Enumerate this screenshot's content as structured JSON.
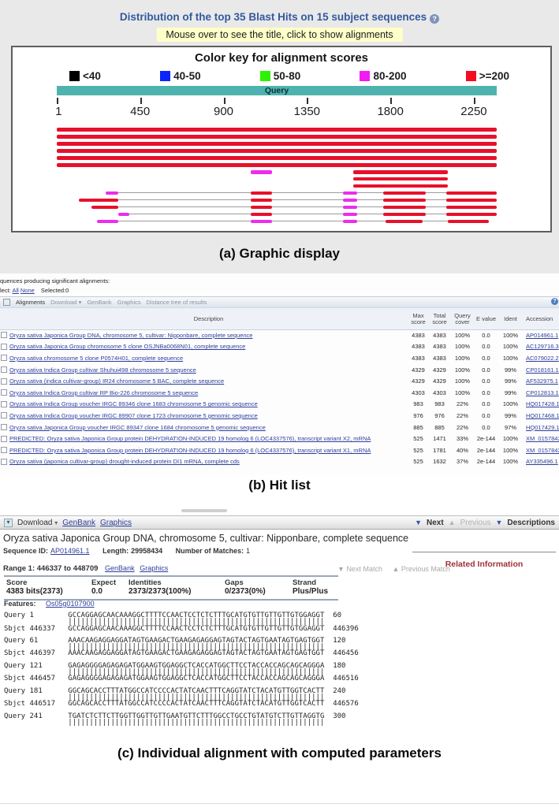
{
  "colors": {
    "red": "#e8102a",
    "magenta": "#ee2bee",
    "teal": "#4eb3af",
    "link_blue": "#2e3f9c",
    "title_blue": "#33599e",
    "maroon": "#9e3039"
  },
  "graphic": {
    "title": "Distribution of the top 35 Blast Hits on 15 subject sequences",
    "help_icon": "?",
    "hint": "Mouse over to see the title, click to show alignments",
    "color_key_title": "Color key for alignment scores",
    "legend": [
      {
        "label": "<40",
        "color": "#000000"
      },
      {
        "label": "40-50",
        "color": "#0b24fb"
      },
      {
        "label": "50-80",
        "color": "#2df200"
      },
      {
        "label": "80-200",
        "color": "#f31bf3"
      },
      {
        "label": ">=200",
        "color": "#f30d1e"
      }
    ],
    "query_label": "Query",
    "query_length": 2373,
    "ruler_ticks": [
      1,
      450,
      900,
      1350,
      1800,
      2250
    ],
    "rows": [
      {
        "segments": [
          {
            "start": 1,
            "end": 2373,
            "color": "red"
          }
        ]
      },
      {
        "segments": [
          {
            "start": 1,
            "end": 2373,
            "color": "red"
          }
        ]
      },
      {
        "segments": [
          {
            "start": 1,
            "end": 2373,
            "color": "red"
          }
        ]
      },
      {
        "segments": [
          {
            "start": 1,
            "end": 2373,
            "color": "red"
          }
        ]
      },
      {
        "segments": [
          {
            "start": 1,
            "end": 2373,
            "color": "red"
          }
        ]
      },
      {
        "segments": [
          {
            "start": 1,
            "end": 2373,
            "color": "red"
          }
        ]
      },
      {
        "segments": [
          {
            "start": 1045,
            "end": 1160,
            "color": "magenta"
          },
          {
            "start": 1600,
            "end": 2110,
            "color": "red"
          }
        ]
      },
      {
        "segments": [
          {
            "start": 1600,
            "end": 2110,
            "color": "red"
          }
        ]
      },
      {
        "segments": [
          {
            "start": 1600,
            "end": 2110,
            "color": "red"
          }
        ]
      },
      {
        "line": [
          330,
          2373
        ],
        "segments": [
          {
            "start": 265,
            "end": 330,
            "color": "magenta"
          },
          {
            "start": 1045,
            "end": 1160,
            "color": "red"
          },
          {
            "start": 1545,
            "end": 1620,
            "color": "magenta"
          },
          {
            "start": 1760,
            "end": 1990,
            "color": "red"
          },
          {
            "start": 2100,
            "end": 2373,
            "color": "red"
          }
        ]
      },
      {
        "line": [
          333,
          2373
        ],
        "segments": [
          {
            "start": 120,
            "end": 333,
            "color": "red"
          },
          {
            "start": 1045,
            "end": 1160,
            "color": "red"
          },
          {
            "start": 1545,
            "end": 1620,
            "color": "magenta"
          },
          {
            "start": 1760,
            "end": 1990,
            "color": "red"
          },
          {
            "start": 2100,
            "end": 2373,
            "color": "red"
          }
        ]
      },
      {
        "line": [
          333,
          2373
        ],
        "segments": [
          {
            "start": 185,
            "end": 333,
            "color": "red"
          },
          {
            "start": 1045,
            "end": 1160,
            "color": "red"
          },
          {
            "start": 1545,
            "end": 1620,
            "color": "magenta"
          },
          {
            "start": 1760,
            "end": 1990,
            "color": "red"
          },
          {
            "start": 2100,
            "end": 2373,
            "color": "red"
          }
        ]
      },
      {
        "line": [
          390,
          2373
        ],
        "segments": [
          {
            "start": 333,
            "end": 390,
            "color": "magenta"
          },
          {
            "start": 1045,
            "end": 1160,
            "color": "red"
          },
          {
            "start": 1545,
            "end": 1620,
            "color": "magenta"
          },
          {
            "start": 1760,
            "end": 1990,
            "color": "red"
          },
          {
            "start": 2100,
            "end": 2373,
            "color": "red"
          }
        ]
      },
      {
        "line": [
          333,
          2330
        ],
        "segments": [
          {
            "start": 215,
            "end": 333,
            "color": "magenta"
          },
          {
            "start": 1045,
            "end": 1160,
            "color": "magenta"
          },
          {
            "start": 1545,
            "end": 1620,
            "color": "magenta"
          },
          {
            "start": 1775,
            "end": 1975,
            "color": "red"
          },
          {
            "start": 2110,
            "end": 2330,
            "color": "red"
          }
        ]
      }
    ],
    "caption": "(a) Graphic display"
  },
  "hitlist": {
    "producing_line": "quences producing significant alignments:",
    "select_prefix": "lect:",
    "select_all": "All",
    "select_none": "None",
    "selected_count": "Selected:0",
    "toolbar": {
      "alignments": "Alignments",
      "download": "Download",
      "download_chevron": "▾",
      "genbank": "GenBank",
      "graphics": "Graphics",
      "distance_tree": "Distance tree of results",
      "help": "?"
    },
    "columns": [
      "Description",
      "Max score",
      "Total score",
      "Query cover",
      "E value",
      "Ident",
      "Accession"
    ],
    "rows": [
      {
        "desc": "Oryza sativa Japonica Group DNA, chromosome 5, cultivar: Nipponbare, complete sequence",
        "max": "4383",
        "total": "4383",
        "cover": "100%",
        "evalue": "0.0",
        "ident": "100%",
        "acc": "AP014961.1"
      },
      {
        "desc": "Oryza sativa Japonica Group chromosome 5 clone OSJNBa0068N01, complete sequence",
        "max": "4383",
        "total": "4383",
        "cover": "100%",
        "evalue": "0.0",
        "ident": "100%",
        "acc": "AC129716.3"
      },
      {
        "desc": "Oryza sativa chromosome 5 clone P0574H01, complete sequence",
        "max": "4383",
        "total": "4383",
        "cover": "100%",
        "evalue": "0.0",
        "ident": "100%",
        "acc": "AC079022.2"
      },
      {
        "desc": "Oryza sativa Indica Group cultivar Shuhui498 chromosome 5 sequence",
        "max": "4329",
        "total": "4329",
        "cover": "100%",
        "evalue": "0.0",
        "ident": "99%",
        "acc": "CP018161.1"
      },
      {
        "desc": "Oryza sativa (indica cultivar-group) IR24 chromosome 5 BAC, complete sequence",
        "max": "4329",
        "total": "4329",
        "cover": "100%",
        "evalue": "0.0",
        "ident": "99%",
        "acc": "AF532975.1"
      },
      {
        "desc": "Oryza sativa Indica Group cultivar RP Bio-226 chromosome 5 sequence",
        "max": "4303",
        "total": "4303",
        "cover": "100%",
        "evalue": "0.0",
        "ident": "99%",
        "acc": "CP012813.1"
      },
      {
        "desc": "Oryza sativa Indica Group voucher IRGC 89346 clone 1683 chromosome 5 genomic sequence",
        "max": "983",
        "total": "983",
        "cover": "22%",
        "evalue": "0.0",
        "ident": "100%",
        "acc": "HQ017428.1"
      },
      {
        "desc": "Oryza sativa Indica Group voucher IRGC 89907 clone 1723 chromosome 5 genomic sequence",
        "max": "976",
        "total": "976",
        "cover": "22%",
        "evalue": "0.0",
        "ident": "99%",
        "acc": "HQ017468.1"
      },
      {
        "desc": "Oryza sativa Japonica Group voucher IRGC 89347 clone 1684 chromosome 5 genomic sequence",
        "max": "885",
        "total": "885",
        "cover": "22%",
        "evalue": "0.0",
        "ident": "97%",
        "acc": "HQ017429.1"
      },
      {
        "desc": "PREDICTED: Oryza sativa Japonica Group protein DEHYDRATION-INDUCED 19 homolog 6 (LOC4337576), transcript variant X2, mRNA",
        "max": "525",
        "total": "1471",
        "cover": "33%",
        "evalue": "2e-144",
        "ident": "100%",
        "acc": "XM_015784286."
      },
      {
        "desc": "PREDICTED: Oryza sativa Japonica Group protein DEHYDRATION-INDUCED 19 homolog 6 (LOC4337576), transcript variant X1, mRNA",
        "max": "525",
        "total": "1781",
        "cover": "40%",
        "evalue": "2e-144",
        "ident": "100%",
        "acc": "XM_015784285."
      },
      {
        "desc": "Oryza sativa (japonica cultivar-group) drought-induced protein DI1 mRNA, complete cds",
        "max": "525",
        "total": "1632",
        "cover": "37%",
        "evalue": "2e-144",
        "ident": "100%",
        "acc": "AY335496.1"
      }
    ],
    "caption": "(b) Hit list"
  },
  "alignment": {
    "toolbar": {
      "download": "Download",
      "download_chevron": "▾",
      "genbank": "GenBank",
      "graphics": "Graphics",
      "next": "Next",
      "previous": "Previous",
      "descriptions": "Descriptions",
      "next_arrow": "▼",
      "prev_arrow": "▲",
      "desc_arrow": "▼"
    },
    "title": "Oryza sativa Japonica Group DNA, chromosome 5, cultivar: Nipponbare, complete sequence",
    "meta": {
      "seq_id_label": "Sequence ID:",
      "seq_id": "AP014961.1",
      "length_label": "Length:",
      "length": "29958434",
      "matches_label": "Number of Matches:",
      "matches": "1"
    },
    "related_info": "Related Information",
    "range": {
      "label": "Range 1: 446337 to 448709",
      "genbank": "GenBank",
      "graphics": "Graphics",
      "next_match": "Next Match",
      "prev_match": "Previous Match",
      "next_arrow": "▼",
      "prev_arrow": "▲"
    },
    "score_table": {
      "score_label": "Score",
      "score": "4383 bits(2373)",
      "expect_label": "Expect",
      "expect": "0.0",
      "identities_label": "Identities",
      "identities": "2373/2373(100%)",
      "gaps_label": "Gaps",
      "gaps": "0/2373(0%)",
      "strand_label": "Strand",
      "strand": "Plus/Plus"
    },
    "features_label": "Features:",
    "features_link": "Os05g0107900",
    "blocks": [
      {
        "qstart": 1,
        "qend": 60,
        "sstart": 446337,
        "send": 446396,
        "seq": "GCCAGGAGCAACAAAGGCTTTTCCAACTCCTCTCTTTGCATGTGTTGTTGTTGTGGAGGT"
      },
      {
        "qstart": 61,
        "qend": 120,
        "sstart": 446397,
        "send": 446456,
        "seq": "AAACAAGAGGAGGATAGTGAAGACTGAAGAGAGGAGTAGTACTAGTGAATAGTGAGTGGT"
      },
      {
        "qstart": 121,
        "qend": 180,
        "sstart": 446457,
        "send": 446516,
        "seq": "GAGAGGGGAGAGAGATGGAAGTGGAGGCTCACCATGGCTTCCTACCACCAGCAGCAGGGA"
      },
      {
        "qstart": 181,
        "qend": 240,
        "sstart": 446517,
        "send": 446576,
        "seq": "GGCAGCACCTTTATGGCCATCCCCACTATCAACTTTCAGGTATCTACATGTTGGTCACTT"
      },
      {
        "qstart": 241,
        "qend": 300,
        "query_only": true,
        "seq": "TGATCTCTTCTTGGTTGGTTGTTGAATGTTCTTTGGCCTGCCTGTATGTCTTGTTAGGTG"
      }
    ],
    "caption": "(c) Individual alignment with computed parameters"
  }
}
